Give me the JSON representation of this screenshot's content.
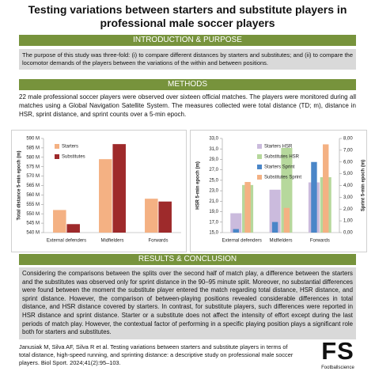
{
  "title": "Testing variations between starters and substitute players in professional male soccer players",
  "sections": [
    {
      "heading": "INTRODUCTION & PURPOSE",
      "text": "The purpose of this study was three-fold: (i) to compare different distances by starters and substitutes; and (ii) to compare the locomotor demands of the players between the variations of the within and between positions."
    },
    {
      "heading": "METHODS",
      "text": "22 male professional soccer players were observed over sixteen official matches. The players were monitored during all matches using a Global Navigation Satellite System. The measures collected were total distance (TD; m), distance in HSR, sprint distance, and sprint counts over a 5-min epoch."
    },
    {
      "heading": "RESULTS & CONCLUSION",
      "text": "Considering the comparisons between the splits over the second half of match play, a difference between the starters and the substitutes was observed only for sprint distance in the 90–95 minute split. Moreover, no substantial differences were found between the moment the substitute player entered the match regarding total distance, HSR distance, and sprint distance. However, the comparison of between-playing positions revealed considerable differences in total distance, and HSR distance covered by starters. In contrast, for substitute players, such differences were reported in HSR distance and sprint distance. Starter or a substitute does not affect the intensity of effort except during the last periods of match play. However, the contextual factor of performing in a specific playing position plays a significant role both for starters and substitutes."
    }
  ],
  "chart_data": [
    {
      "type": "bar",
      "y_label": "Total distance 5-min epoch (m)",
      "categories": [
        "External defenders",
        "Midfielders",
        "Forwards"
      ],
      "series": [
        {
          "name": "Starters",
          "color": "#f4b183",
          "values": [
            552,
            579,
            558
          ]
        },
        {
          "name": "Substitutes",
          "color": "#9e2a2b",
          "values": [
            544.5,
            587,
            556.5
          ]
        }
      ],
      "ylim": [
        540,
        590
      ],
      "yticks": [
        {
          "value": 540,
          "label": "540 M"
        },
        {
          "value": 545,
          "label": "545 M"
        },
        {
          "value": 550,
          "label": "550 M"
        },
        {
          "value": 555,
          "label": "555 M"
        },
        {
          "value": 560,
          "label": "560 M"
        },
        {
          "value": 565,
          "label": "565 M"
        },
        {
          "value": 570,
          "label": "570 M"
        },
        {
          "value": 575,
          "label": "575 M"
        },
        {
          "value": 580,
          "label": "580 M"
        },
        {
          "value": 585,
          "label": "585 M"
        },
        {
          "value": 590,
          "label": "590 M"
        }
      ]
    },
    {
      "type": "bar",
      "y_label": "HSR 5-min epoch (m)",
      "y2_label": "Sprint 5-min epoch (m)",
      "categories": [
        "External defenders",
        "Midfielders",
        "Forwards"
      ],
      "series": [
        {
          "name": "Starters HSR",
          "color": "#cbbbdd",
          "values": [
            18.7,
            23.2,
            24.6
          ]
        },
        {
          "name": "Substitutes HSR",
          "color": "#b6d89c",
          "values": [
            24.1,
            31.2,
            25.6
          ]
        },
        {
          "name": "Starters Sprint",
          "color": "#4a86c8",
          "values": [
            0.3,
            0.9,
            6.0
          ],
          "axis": "y2"
        },
        {
          "name": "Substitutes Sprint",
          "color": "#f4b183",
          "values": [
            4.3,
            2.1,
            7.5
          ],
          "axis": "y2"
        }
      ],
      "ylim": [
        15,
        33
      ],
      "yticks": [
        {
          "value": 15,
          "label": "15,0"
        },
        {
          "value": 17,
          "label": "17,0"
        },
        {
          "value": 19,
          "label": "19,0"
        },
        {
          "value": 21,
          "label": "21,0"
        },
        {
          "value": 23,
          "label": "23,0"
        },
        {
          "value": 25,
          "label": "25,0"
        },
        {
          "value": 27,
          "label": "27,0"
        },
        {
          "value": 29,
          "label": "29,0"
        },
        {
          "value": 31,
          "label": "31,0"
        },
        {
          "value": 33,
          "label": "33,0"
        }
      ],
      "y2lim": [
        0,
        8
      ],
      "y2ticks": [
        {
          "value": 0,
          "label": "0,00"
        },
        {
          "value": 1,
          "label": "1,00"
        },
        {
          "value": 2,
          "label": "2,00"
        },
        {
          "value": 3,
          "label": "3,00"
        },
        {
          "value": 4,
          "label": "4,00"
        },
        {
          "value": 5,
          "label": "5,00"
        },
        {
          "value": 6,
          "label": "6,00"
        },
        {
          "value": 7,
          "label": "7,00"
        },
        {
          "value": 8,
          "label": "8,00"
        }
      ]
    }
  ],
  "citation": "Janusiak M, Silva AF, Silva R et al. Testing variations between starters and substitute players in terms of total distance, high-speed running, and sprinting distance: a descriptive study on professional male soccer players. Biol Sport. 2024;41(2):95–103.",
  "logo": {
    "mark": "FS",
    "name": "Footballscience"
  }
}
